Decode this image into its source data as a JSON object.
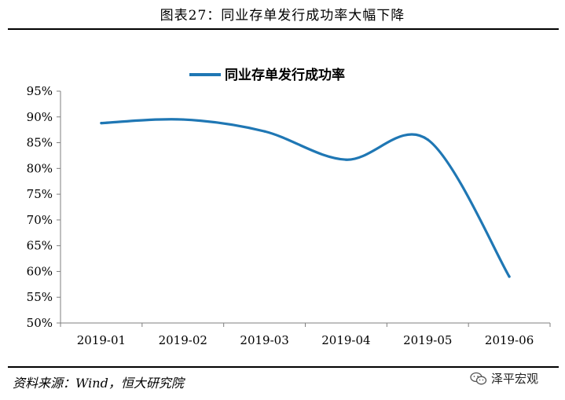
{
  "header": {
    "title": "图表27：同业存单发行成功率大幅下降"
  },
  "footer": {
    "source": "资料来源：Wind，恒大研究院",
    "watermark_text": "泽平宏观",
    "watermark_icon": "wechat-icon"
  },
  "colors": {
    "line": "#1f77b4",
    "axis": "#7f7f7f",
    "text": "#000000"
  },
  "chart_data": {
    "type": "line",
    "title": "",
    "xlabel": "",
    "ylabel": "",
    "categories": [
      "2019-01",
      "2019-02",
      "2019-03",
      "2019-04",
      "2019-05",
      "2019-06"
    ],
    "series": [
      {
        "name": "同业存单发行成功率",
        "values": [
          88.8,
          89.5,
          87.2,
          81.7,
          85.6,
          59.0
        ]
      }
    ],
    "ylim": [
      50,
      95
    ],
    "yticks": [
      "50%",
      "55%",
      "60%",
      "65%",
      "70%",
      "75%",
      "80%",
      "85%",
      "90%",
      "95%"
    ],
    "y_tick_values": [
      50,
      55,
      60,
      65,
      70,
      75,
      80,
      85,
      90,
      95
    ],
    "legend_position": "top-center",
    "grid": false,
    "smooth": true
  }
}
